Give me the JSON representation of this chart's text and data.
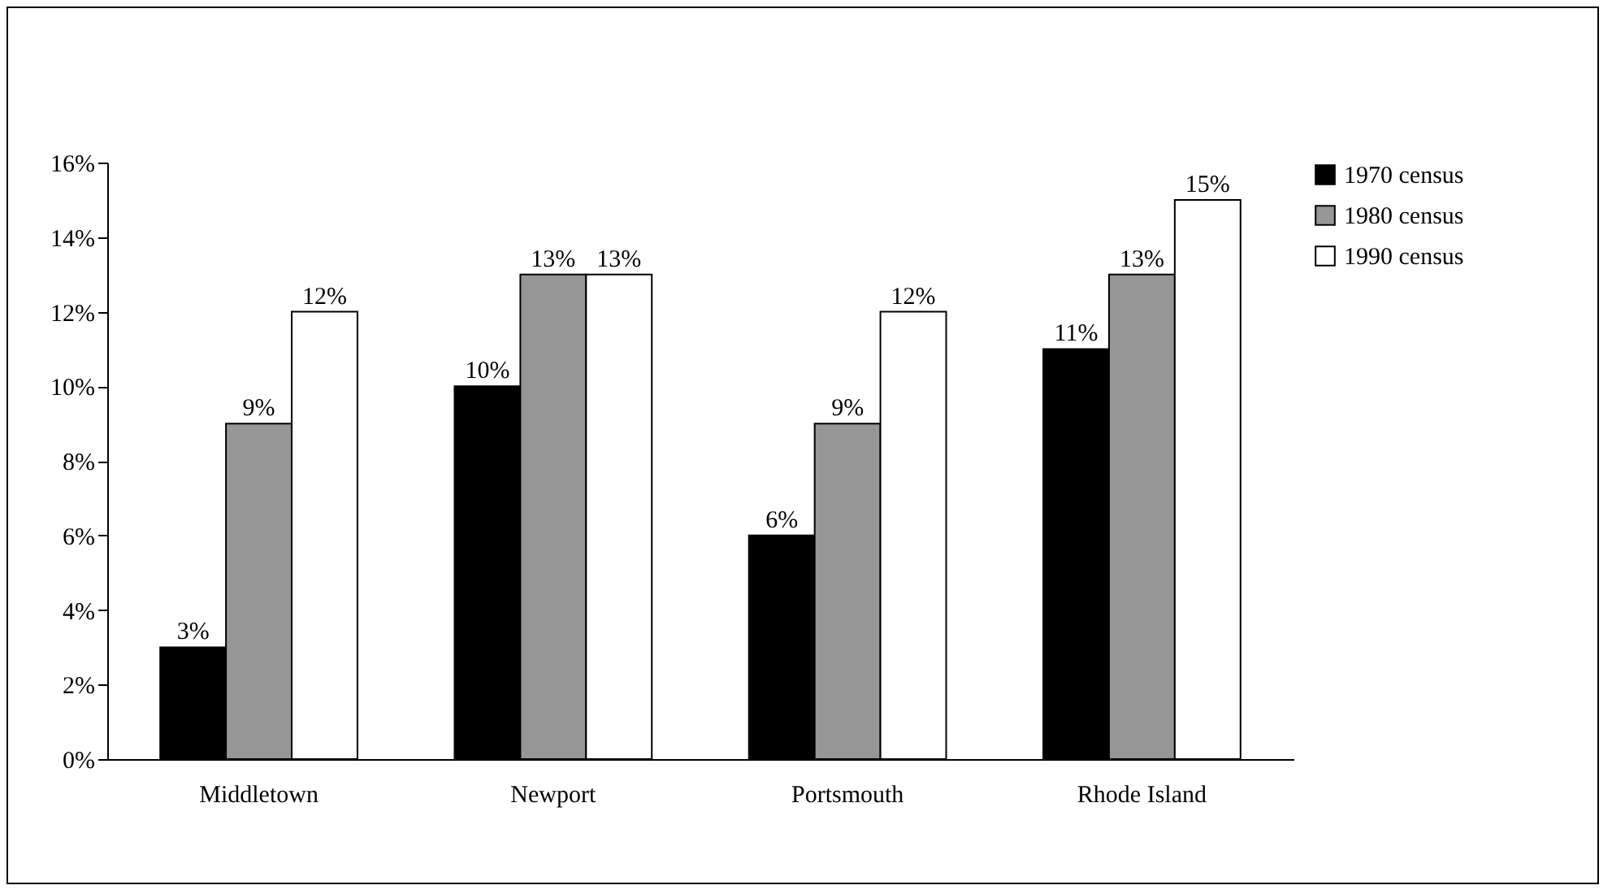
{
  "chart_data": {
    "type": "bar",
    "categories": [
      "Middletown",
      "Newport",
      "Portsmouth",
      "Rhode Island"
    ],
    "series": [
      {
        "name": "1970 census",
        "color": "#000000",
        "values": [
          3,
          10,
          6,
          11
        ],
        "value_labels": [
          "3%",
          "10%",
          "6%",
          "11%"
        ]
      },
      {
        "name": "1980 census",
        "color": "#969696",
        "values": [
          9,
          13,
          9,
          13
        ],
        "value_labels": [
          "9%",
          "13%",
          "9%",
          "13%"
        ]
      },
      {
        "name": "1990 census",
        "color": "#ffffff",
        "values": [
          12,
          13,
          12,
          15
        ],
        "value_labels": [
          "12%",
          "13%",
          "12%",
          "15%"
        ]
      }
    ],
    "ylim": [
      0,
      16
    ],
    "yticks": [
      {
        "value": 0,
        "label": "0%"
      },
      {
        "value": 2,
        "label": "2%"
      },
      {
        "value": 4,
        "label": "4%"
      },
      {
        "value": 6,
        "label": "6%"
      },
      {
        "value": 8,
        "label": "8%"
      },
      {
        "value": 10,
        "label": "10%"
      },
      {
        "value": 12,
        "label": "12%"
      },
      {
        "value": 14,
        "label": "14%"
      },
      {
        "value": 16,
        "label": "16%"
      }
    ],
    "grid": false,
    "legend": "right"
  }
}
